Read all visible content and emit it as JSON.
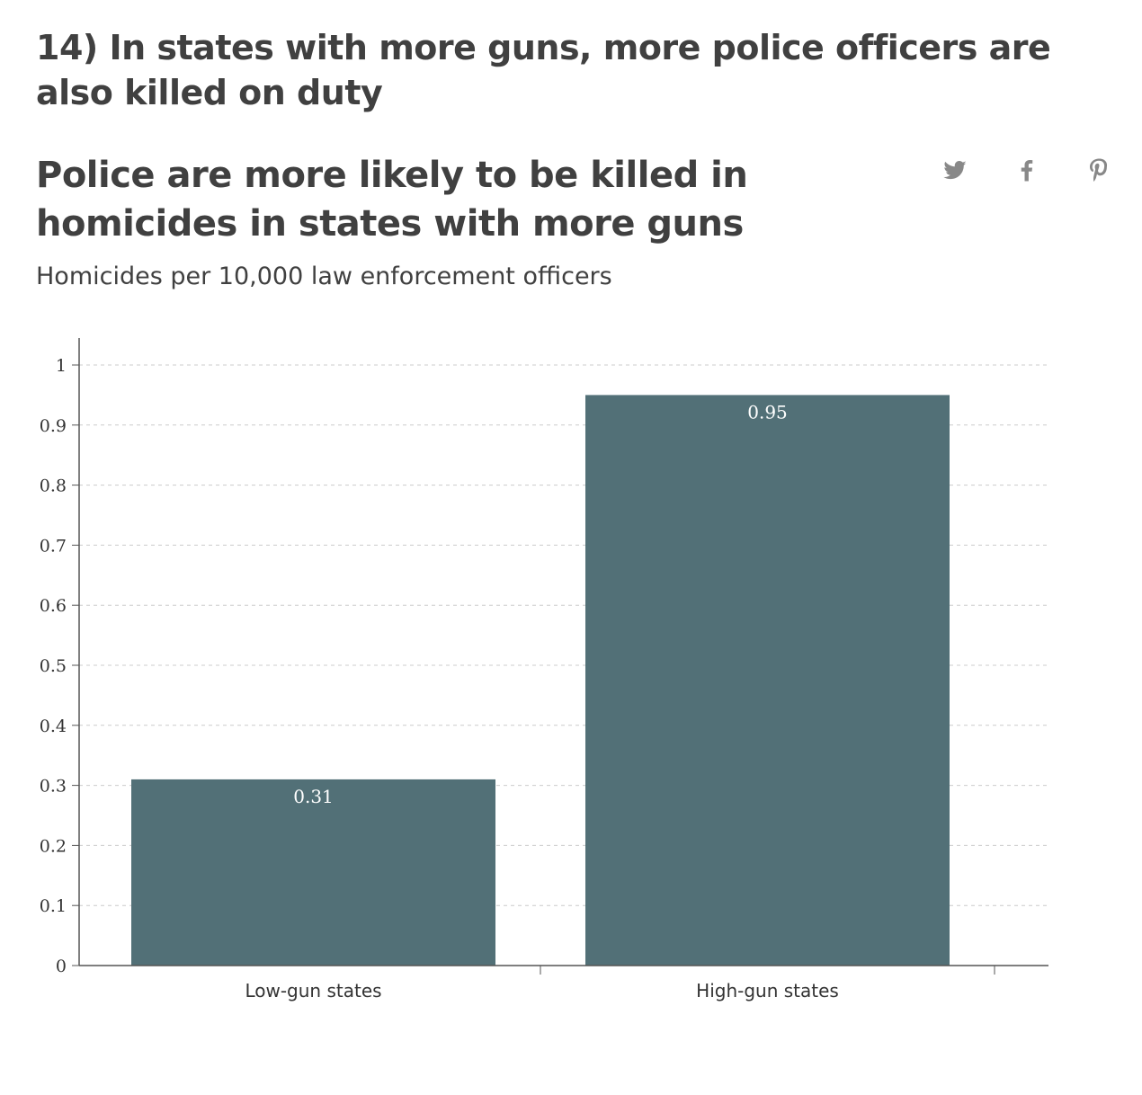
{
  "heading": "14) In states with more guns, more police officers are also killed on duty",
  "share": {
    "icons": [
      "twitter-icon",
      "facebook-icon",
      "pinterest-icon"
    ]
  },
  "colors": {
    "bar": "#527077",
    "text": "#404040",
    "icon": "#888888",
    "grid": "#cccccc"
  },
  "chart_data": {
    "type": "bar",
    "title": "Police are more likely to be killed in homicides in states with more guns",
    "subtitle": "Homicides per 10,000 law enforcement officers",
    "categories": [
      "Low-gun states",
      "High-gun states"
    ],
    "values": [
      0.31,
      0.95
    ],
    "value_labels": [
      "0.31",
      "0.95"
    ],
    "ylim": [
      0,
      1
    ],
    "yticks": [
      "0",
      "0.1",
      "0.2",
      "0.3",
      "0.4",
      "0.5",
      "0.6",
      "0.7",
      "0.8",
      "0.9",
      "1"
    ],
    "grid": true,
    "legend": "none"
  }
}
